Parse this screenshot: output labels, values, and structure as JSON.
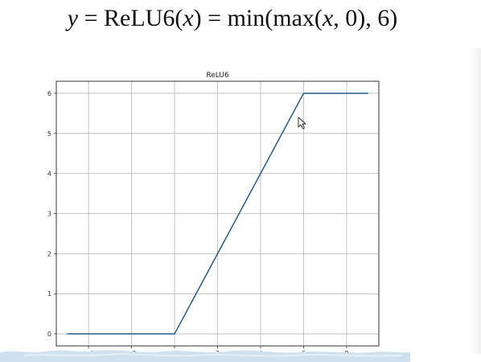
{
  "formula": {
    "y": "y",
    "eq": " = ReLU6(",
    "x1": "x",
    "mid": ") = min(max(",
    "x2": "x",
    "end": ", 0), 6)"
  },
  "colors": {
    "line": "#1f5f8f",
    "grid": "#b5b5b5",
    "frame": "#333333",
    "wave": "#cfe0ee"
  },
  "cursor_icon": "mouse-pointer-icon",
  "chart_data": {
    "type": "line",
    "title": "ReLU6",
    "xlabel": "",
    "ylabel": "",
    "xlim": [
      -5.5,
      9.5
    ],
    "ylim": [
      -0.3,
      6.3
    ],
    "xticks": [
      -4,
      -2,
      0,
      2,
      4,
      6,
      8
    ],
    "yticks": [
      0,
      1,
      2,
      3,
      4,
      5,
      6
    ],
    "xtick_labels": [
      "−4",
      "−2",
      "0",
      "2",
      "4",
      "6",
      "8"
    ],
    "ytick_labels": [
      "0",
      "1",
      "2",
      "3",
      "4",
      "5",
      "6"
    ],
    "grid": true,
    "series": [
      {
        "x": [
          -5,
          0,
          6,
          9
        ],
        "y": [
          0,
          0,
          6,
          6
        ]
      }
    ]
  }
}
